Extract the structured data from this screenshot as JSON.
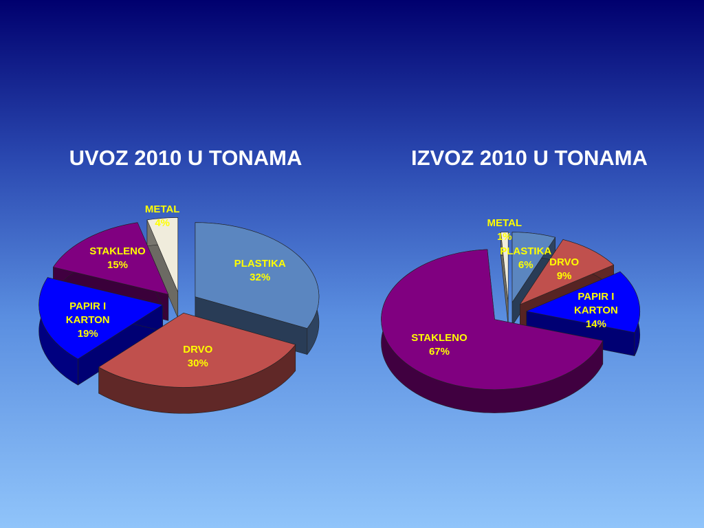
{
  "chart_data": [
    {
      "type": "pie",
      "title": "UVOZ 2010 U TONAMA",
      "categories": [
        "PLASTIKA",
        "DRVO",
        "PAPIR I KARTON",
        "STAKLENO",
        "METAL"
      ],
      "values": [
        32,
        30,
        19,
        15,
        4
      ],
      "value_labels": [
        "32%",
        "30%",
        "19%",
        "15%",
        "4%"
      ],
      "colors": [
        "#5b86c0",
        "#c0504d",
        "#0000ff",
        "#800080",
        "#f0ecdc"
      ],
      "label_color": "#ffff00"
    },
    {
      "type": "pie",
      "title": "IZVOZ 2010 U TONAMA",
      "categories": [
        "PLASTIKA",
        "DRVO",
        "PAPIR I KARTON",
        "STAKLENO",
        "METAL"
      ],
      "values": [
        6,
        9,
        14,
        67,
        1
      ],
      "value_labels": [
        "6%",
        "9%",
        "14%",
        "67%",
        "1%"
      ],
      "colors": [
        "#5b86c0",
        "#c0504d",
        "#0000ff",
        "#800080",
        "#f0ecdc"
      ],
      "label_color": "#ffff00"
    }
  ]
}
